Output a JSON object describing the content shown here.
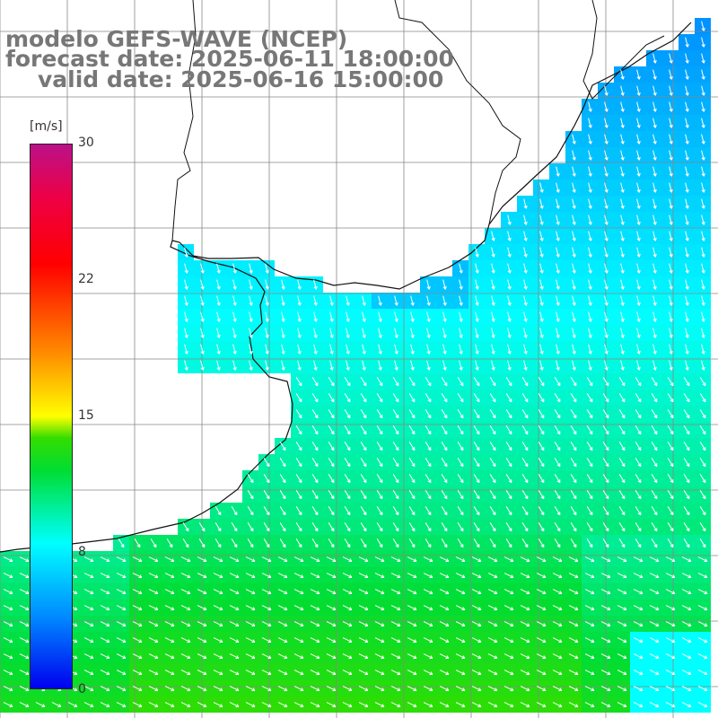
{
  "titles": {
    "line1": "modelo GEFS-WAVE (NCEP)",
    "line2": "forecast date: 2025-06-11 18:00:00",
    "line3": "valid date: 2025-06-16 15:00:00"
  },
  "colorbar": {
    "unit": "[m/s]",
    "ticks": [
      "0",
      "8",
      "15",
      "22",
      "30"
    ],
    "min": 0,
    "max": 30
  },
  "colors": {
    "land": "#ffffff",
    "grid": "#888888",
    "coast": "#111111",
    "arrow": "#ffffff",
    "title": "#777777"
  },
  "map": {
    "variable": "wind speed",
    "grid_lines": true,
    "arrows": "white wind direction vectors, pointing mostly SE offshore and S along the coast"
  }
}
